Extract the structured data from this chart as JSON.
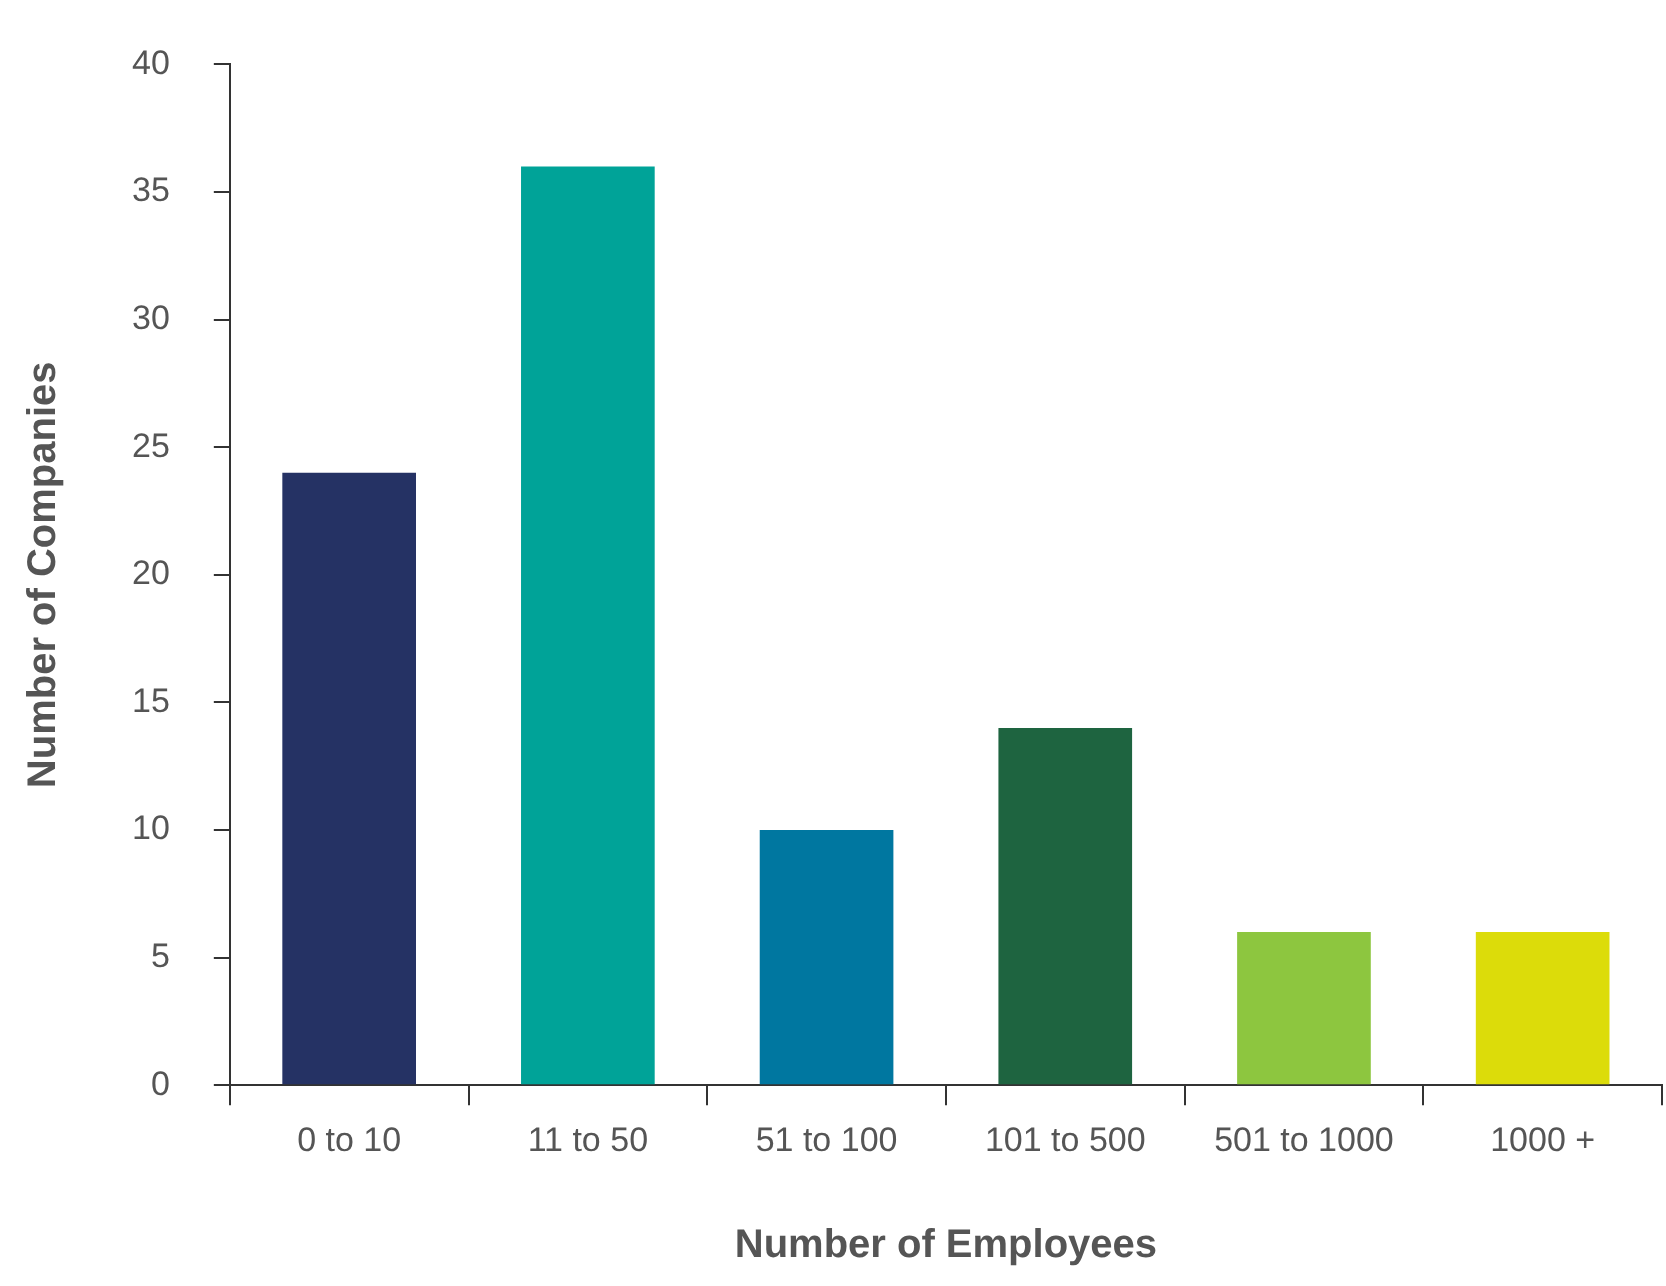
{
  "chart_data": {
    "type": "bar",
    "xlabel": "Number of Employees",
    "ylabel": "Number of Companies",
    "categories": [
      "0 to 10",
      "11 to 50",
      "51 to 100",
      "101 to 500",
      "501 to 1000",
      "1000 +"
    ],
    "values": [
      24,
      36,
      10,
      14,
      6,
      6
    ],
    "colors": [
      "#253264",
      "#00a398",
      "#0077a0",
      "#1e6440",
      "#8dc63f",
      "#dcdc0a"
    ],
    "ylim": [
      0,
      40
    ],
    "yticks": [
      0,
      5,
      10,
      15,
      20,
      25,
      30,
      35,
      40
    ]
  }
}
